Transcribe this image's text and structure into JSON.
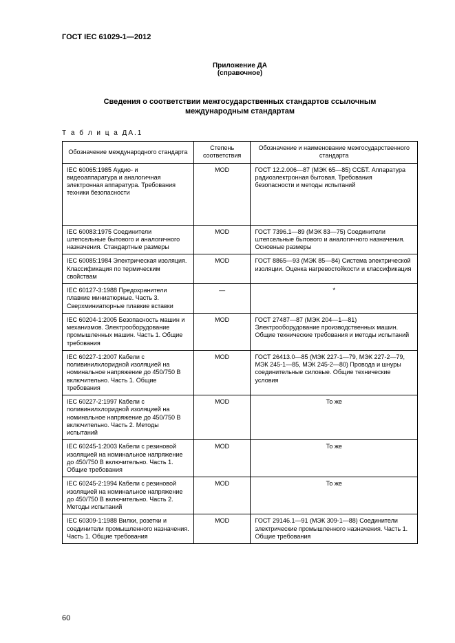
{
  "doc_id": "ГОСТ IEC 61029-1—2012",
  "annex": "Приложение ДА",
  "annex_note": "(справочное)",
  "title": "Сведения о соответствии межгосударственных стандартов ссылочным",
  "subtitle": "международным стандартам",
  "table_caption": "Т а б л и ц а   ДА.1",
  "columns": {
    "c1": "Обозначение\nмеждународного стандарта",
    "c2": "Степень\nсоответствия",
    "c3": "Обозначение и наименование\nмежгосударственного стандарта"
  },
  "rows": [
    {
      "intl": "IEC 60065:1985 Аудио- и видеоаппаратура и аналогичная электронная аппаратура. Требования техники безопасности",
      "deg": "MOD",
      "gost": "ГОСТ 12.2.006—87 (МЭК 65—85)\nССБТ. Аппаратура радиоэлектронная бытовая. Требования безопасности и методы испытаний",
      "tall": true
    },
    {
      "intl": "IEC 60083:1975 Соединители штепсельные бытового и аналогичного назначения. Стандартные размеры",
      "deg": "MOD",
      "gost": "ГОСТ 7396.1—89 (МЭК 83—75)\nСоединители штепсельные бытового и аналогичного назначения.\nОсновные размеры"
    },
    {
      "intl": "IEC 60085:1984 Электрическая изоляция. Классификация по термическим свойствам",
      "deg": "MOD",
      "gost": "ГОСТ 8865—93 (МЭК 85—84)\nСистема электрической изоляции.\nОценка нагревостойкости и классификация"
    },
    {
      "intl": "IEC 60127-3:1988 Предохранители плавкие миниатюрные. Часть 3. Сверхминиатюрные плавкие вставки",
      "deg": "—",
      "gost": "*",
      "gost_center": true
    },
    {
      "intl": "IEC 60204-1:2005 Безопасность машин и механизмов.\nЭлектрооборудование промышленных машин. Часть 1.\nОбщие требования",
      "deg": "MOD",
      "gost": "ГОСТ 27487—87 (МЭК 204—1—81)\nЭлектрооборудование производственных машин. Общие технические требования и методы испытаний"
    },
    {
      "intl": "IEC 60227-1:2007 Кабели с поливинилхлоридной изоляцией\nна номинальное напряжение\nдо 450/750 В включительно.\nЧасть 1. Общие требования",
      "deg": "MOD",
      "gost": "ГОСТ 26413.0—85 (МЭК 227-1—79, МЭК 227-2—79, МЭК 245-1—85, МЭК 245-2—80) Провода и шнуры соединительные силовые.\nОбщие технические условия"
    },
    {
      "intl": "IEC 60227-2:1997 Кабели с поливинилхлоридной изоляцией на номинальное напряжение до 450/750 В включительно. Часть 2. Методы испытаний",
      "deg": "MOD",
      "gost": "То же",
      "gost_center": true
    },
    {
      "intl": "IEC 60245-1:2003 Кабели с резиновой изоляцией на номинальное напряжение до 450/750 В включительно.\nЧасть 1. Общие требования",
      "deg": "MOD",
      "gost": "То же",
      "gost_center": true
    },
    {
      "intl": "IEC 60245-2:1994 Кабели с резиновой изоляцией на номинальное напряжение до 450/750 В включительно.\nЧасть 2. Методы испытаний",
      "deg": "MOD",
      "gost": "То же",
      "gost_center": true
    },
    {
      "intl": "IEC 60309-1:1988 Вилки,\nрозетки и соединители промышленного назначения.\nЧасть 1. Общие требования",
      "deg": "MOD",
      "gost": "ГОСТ 29146.1—91 (МЭК 309-1—88)\nСоединители электрические промышленного назначения. Часть 1.\nОбщие требования"
    }
  ],
  "page_number": "60"
}
